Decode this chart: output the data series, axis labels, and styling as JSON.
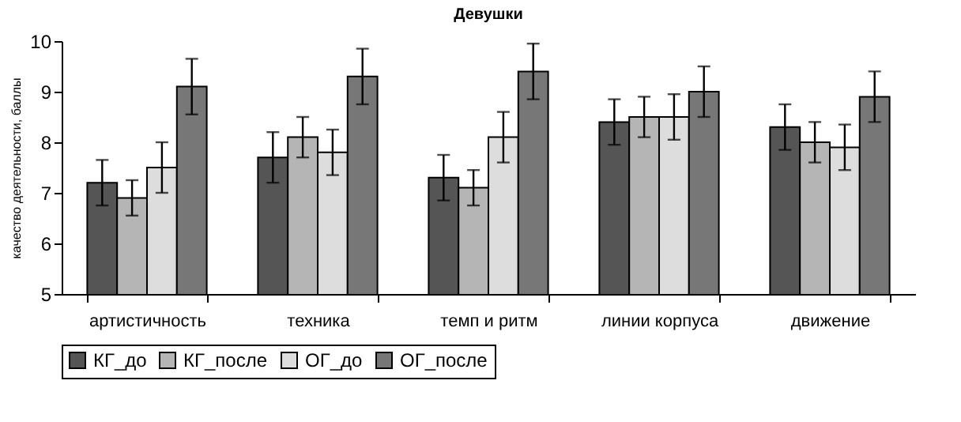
{
  "chart_data": {
    "type": "bar",
    "title": "Девушки",
    "ylabel": "качество деятельности, баллы",
    "categories": [
      "артистичность",
      "техника",
      "темп и ритм",
      "линии корпуса",
      "движение"
    ],
    "series": [
      {
        "name": "КГ_до",
        "color": "#555555",
        "values": [
          7.2,
          7.7,
          7.3,
          8.4,
          8.3
        ],
        "errors": [
          0.45,
          0.5,
          0.45,
          0.45,
          0.45
        ]
      },
      {
        "name": "КГ_после",
        "color": "#b5b5b5",
        "values": [
          6.9,
          8.1,
          7.1,
          8.5,
          8.0
        ],
        "errors": [
          0.35,
          0.4,
          0.35,
          0.4,
          0.4
        ]
      },
      {
        "name": "ОГ_до",
        "color": "#dddddd",
        "values": [
          7.5,
          7.8,
          8.1,
          8.5,
          7.9
        ],
        "errors": [
          0.5,
          0.45,
          0.5,
          0.45,
          0.45
        ]
      },
      {
        "name": "ОГ_после",
        "color": "#777777",
        "values": [
          9.1,
          9.3,
          9.4,
          9.0,
          8.9
        ],
        "errors": [
          0.55,
          0.55,
          0.55,
          0.5,
          0.5
        ]
      }
    ],
    "ylim": [
      5,
      10
    ],
    "yticks": [
      5,
      6,
      7,
      8,
      9,
      10
    ],
    "grid": false,
    "legend": "bottom"
  }
}
